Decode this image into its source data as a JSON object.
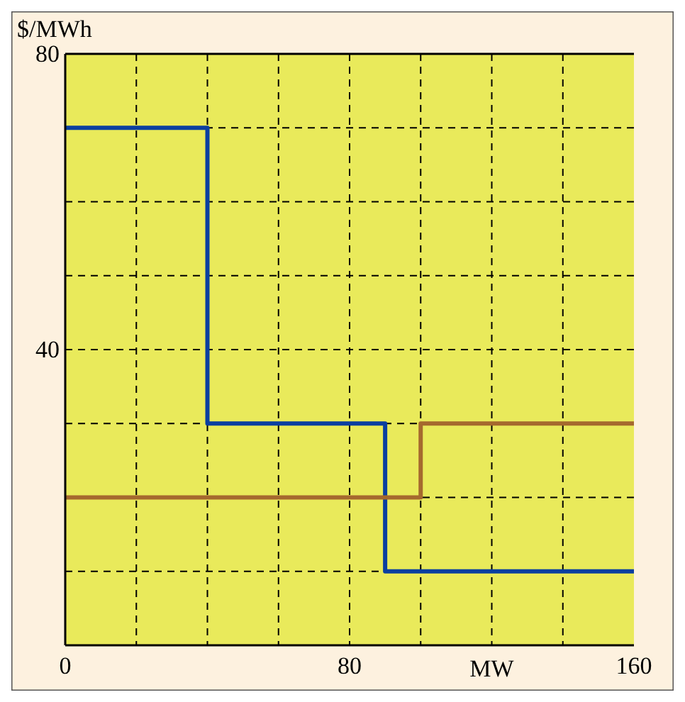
{
  "chart_data": {
    "type": "step",
    "xlabel": "MW",
    "ylabel": "$/MWh",
    "xlim": [
      0,
      160
    ],
    "ylim": [
      0,
      80
    ],
    "xticks": [
      0,
      {
        "value": 20,
        "label": null
      },
      {
        "value": 40,
        "label": null
      },
      {
        "value": 60,
        "label": null
      },
      80,
      {
        "value": 100,
        "label": null
      },
      {
        "value": 120,
        "label": null
      },
      {
        "value": 140,
        "label": null
      },
      160
    ],
    "yticks": [
      {
        "value": 0,
        "label": null
      },
      {
        "value": 10,
        "label": null
      },
      {
        "value": 20,
        "label": null
      },
      {
        "value": 30,
        "label": null
      },
      40,
      {
        "value": 50,
        "label": null
      },
      {
        "value": 60,
        "label": null
      },
      {
        "value": 70,
        "label": null
      },
      80
    ],
    "grid": true,
    "line_style": "solid",
    "series": [
      {
        "color": "#0a3fa0",
        "x": [
          0,
          40,
          90,
          160
        ],
        "values": [
          70,
          30,
          10,
          10
        ]
      },
      {
        "color": "#a5692e",
        "x": [
          0,
          100,
          160
        ],
        "values": [
          20,
          30,
          30
        ]
      }
    ]
  }
}
